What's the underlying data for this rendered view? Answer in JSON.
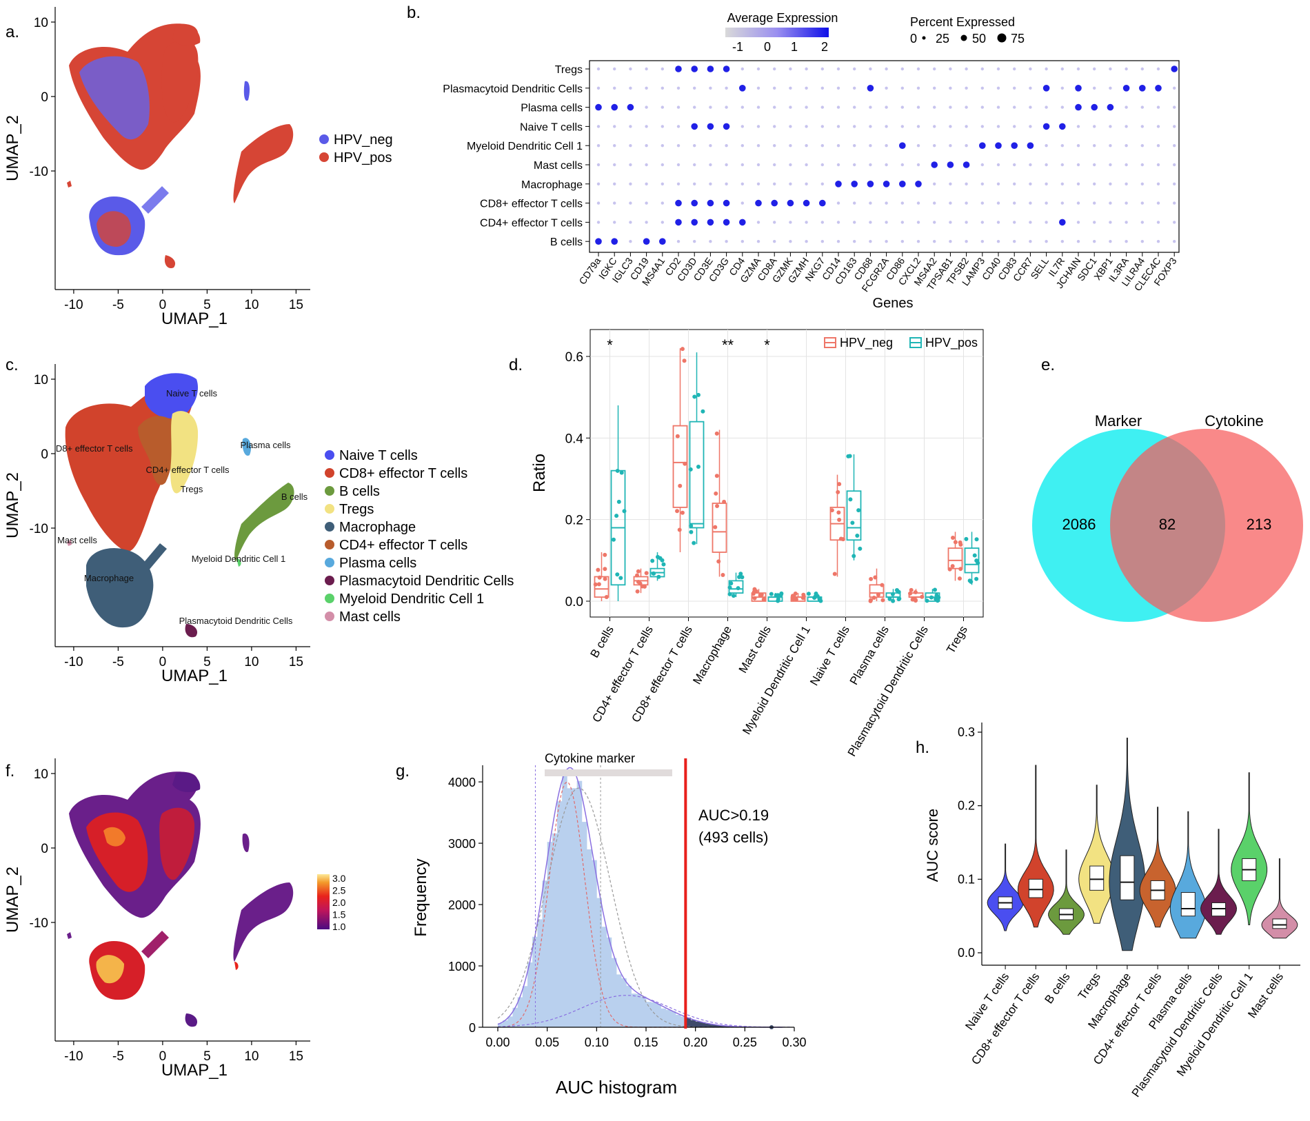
{
  "panel_labels": {
    "a": "a.",
    "b": "b.",
    "c": "c.",
    "d": "d.",
    "e": "e.",
    "f": "f.",
    "g": "g.",
    "h": "h."
  },
  "umap": {
    "xlabel": "UMAP_1",
    "ylabel": "UMAP_2",
    "xticks": [
      -10,
      -5,
      0,
      5,
      10,
      15
    ],
    "yticks": [
      10,
      0,
      -10
    ]
  },
  "panel_a": {
    "legend": [
      {
        "label": "HPV_neg",
        "color": "#5a5ae8"
      },
      {
        "label": "HPV_pos",
        "color": "#d64535"
      }
    ]
  },
  "panel_b": {
    "chart_data": {
      "type": "dot",
      "xlabel": "Genes",
      "genes": [
        "CD79a",
        "IGKC",
        "IGLC3",
        "CD19",
        "MS4A1",
        "CD2",
        "CD3D",
        "CD3E",
        "CD3G",
        "CD4",
        "GZMA",
        "CD8A",
        "GZMK",
        "GZMH",
        "NKG7",
        "CD14",
        "CD163",
        "CD68",
        "FCGR2A",
        "CD86",
        "CXCL2",
        "MS4A2",
        "TPSAB1",
        "TPSB2",
        "LAMP3",
        "CD40",
        "CD83",
        "CCR7",
        "SELL",
        "IL7R",
        "JCHAIN",
        "SDC1",
        "XBP1",
        "IL3RA",
        "LILRA4",
        "CLEC4C",
        "FOXP3"
      ],
      "cell_types": [
        "Tregs",
        "Plasmacytoid Dendritic Cells",
        "Plasma cells",
        "Naive T cells",
        "Myeloid Dendritic Cell 1",
        "Mast cells",
        "Macrophage",
        "CD8+ effector T cells",
        "CD4+ effector T cells",
        "B cells"
      ],
      "color_legend_title": "Average Expression",
      "color_ticks": [
        "-1",
        "0",
        "1",
        "2"
      ],
      "size_legend_title": "Percent Expressed",
      "size_ticks": [
        "0",
        "25",
        "50",
        "75"
      ],
      "highlights": [
        {
          "cell": "Tregs",
          "genes": [
            "CD2",
            "CD3D",
            "CD3E",
            "CD3G",
            "FOXP3"
          ]
        },
        {
          "cell": "Plasmacytoid Dendritic Cells",
          "genes": [
            "CD4",
            "CD68",
            "SELL",
            "JCHAIN",
            "IL3RA",
            "LILRA4",
            "CLEC4C"
          ]
        },
        {
          "cell": "Plasma cells",
          "genes": [
            "CD79a",
            "IGKC",
            "IGLC3",
            "JCHAIN",
            "SDC1",
            "XBP1"
          ]
        },
        {
          "cell": "Naive T cells",
          "genes": [
            "CD3D",
            "CD3E",
            "CD3G",
            "SELL",
            "IL7R"
          ]
        },
        {
          "cell": "Myeloid Dendritic Cell 1",
          "genes": [
            "CD86",
            "LAMP3",
            "CD40",
            "CD83",
            "CCR7"
          ]
        },
        {
          "cell": "Mast cells",
          "genes": [
            "MS4A2",
            "TPSAB1",
            "TPSB2"
          ]
        },
        {
          "cell": "Macrophage",
          "genes": [
            "CD14",
            "CD163",
            "CD68",
            "FCGR2A",
            "CD86",
            "CXCL2"
          ]
        },
        {
          "cell": "CD8+ effector T cells",
          "genes": [
            "CD2",
            "CD3D",
            "CD3E",
            "CD3G",
            "GZMA",
            "CD8A",
            "GZMK",
            "GZMH",
            "NKG7"
          ]
        },
        {
          "cell": "CD4+ effector T cells",
          "genes": [
            "CD2",
            "CD3D",
            "CD3E",
            "CD3G",
            "CD4",
            "IL7R"
          ]
        },
        {
          "cell": "B cells",
          "genes": [
            "CD79a",
            "IGKC",
            "CD19",
            "MS4A1"
          ]
        }
      ]
    }
  },
  "panel_c": {
    "legend": [
      {
        "label": "Naive T cells",
        "color": "#4a4ef0"
      },
      {
        "label": "CD8+ effector T cells",
        "color": "#d1432c"
      },
      {
        "label": "B cells",
        "color": "#6c9a3e"
      },
      {
        "label": "Tregs",
        "color": "#f2e282"
      },
      {
        "label": "Macrophage",
        "color": "#3f5e78"
      },
      {
        "label": "CD4+ effector T cells",
        "color": "#b85c2c"
      },
      {
        "label": "Plasma cells",
        "color": "#58a9dd"
      },
      {
        "label": "Plasmacytoid Dendritic Cells",
        "color": "#6b1d4e"
      },
      {
        "label": "Myeloid Dendritic Cell 1",
        "color": "#5ad16a"
      },
      {
        "label": "Mast cells",
        "color": "#d38ea8"
      }
    ],
    "cluster_labels": [
      "Naive T cells",
      "CD8+ effector T cells",
      "CD4+ effector T cells",
      "Tregs",
      "Plasma cells",
      "B cells",
      "Mast cells",
      "Myeloid Dendritic Cell 1",
      "Macrophage",
      "Plasmacytoid Dendritic Cells"
    ]
  },
  "panel_d": {
    "chart_data": {
      "type": "box",
      "ylabel": "Ratio",
      "ylim": [
        0,
        0.65
      ],
      "yticks": [
        0.0,
        0.2,
        0.4,
        0.6
      ],
      "categories": [
        "B cells",
        "CD4+ effector T cells",
        "CD8+ effector T cells",
        "Macrophage",
        "Mast cells",
        "Myeloid Dendritic Cell 1",
        "Naive T cells",
        "Plasma cells",
        "Plasmacytoid Dendritic Cells",
        "Tregs"
      ],
      "significance": [
        "*",
        "",
        "",
        "**",
        "*",
        "",
        "",
        "",
        "",
        ""
      ],
      "series": [
        {
          "name": "HPV_neg",
          "color": "#ee7668",
          "boxes": [
            [
              0.0,
              0.01,
              0.03,
              0.06,
              0.12
            ],
            [
              0.02,
              0.04,
              0.05,
              0.06,
              0.08
            ],
            [
              0.12,
              0.23,
              0.34,
              0.43,
              0.62
            ],
            [
              0.06,
              0.12,
              0.17,
              0.24,
              0.42
            ],
            [
              0.0,
              0.0,
              0.01,
              0.02,
              0.03
            ],
            [
              0.0,
              0.0,
              0.01,
              0.01,
              0.02
            ],
            [
              0.06,
              0.15,
              0.19,
              0.23,
              0.31
            ],
            [
              0.0,
              0.01,
              0.02,
              0.04,
              0.08
            ],
            [
              0.0,
              0.01,
              0.01,
              0.02,
              0.03
            ],
            [
              0.05,
              0.08,
              0.1,
              0.13,
              0.17
            ]
          ]
        },
        {
          "name": "HPV_pos",
          "color": "#1fb5b5",
          "boxes": [
            [
              0.0,
              0.04,
              0.18,
              0.32,
              0.48
            ],
            [
              0.05,
              0.06,
              0.07,
              0.08,
              0.12
            ],
            [
              0.14,
              0.18,
              0.19,
              0.44,
              0.61
            ],
            [
              0.01,
              0.02,
              0.03,
              0.05,
              0.07
            ],
            [
              0.0,
              0.0,
              0.01,
              0.01,
              0.02
            ],
            [
              0.0,
              0.0,
              0.01,
              0.01,
              0.02
            ],
            [
              0.1,
              0.15,
              0.18,
              0.27,
              0.36
            ],
            [
              0.0,
              0.01,
              0.01,
              0.02,
              0.03
            ],
            [
              0.0,
              0.0,
              0.01,
              0.02,
              0.03
            ],
            [
              0.04,
              0.07,
              0.09,
              0.13,
              0.17
            ]
          ]
        }
      ]
    }
  },
  "panel_e": {
    "sets": [
      {
        "label": "Marker",
        "color": "#3ff0f2"
      },
      {
        "label": "Cytokine",
        "color": "#f65c5c"
      }
    ],
    "counts": {
      "left": "2086",
      "both": "82",
      "right": "213"
    }
  },
  "panel_f": {
    "colorbar_ticks": [
      "3.0",
      "2.5",
      "2.0",
      "1.5",
      "1.0"
    ]
  },
  "panel_g": {
    "chart_data": {
      "type": "histogram",
      "title": "Cytokine marker",
      "xlabel": "AUC histogram",
      "ylabel": "Frequency",
      "xlim": [
        0.0,
        0.3
      ],
      "ylim": [
        0,
        4200
      ],
      "xticks": [
        "0.00",
        "0.05",
        "0.10",
        "0.15",
        "0.20",
        "0.25",
        "0.30"
      ],
      "yticks": [
        0,
        1000,
        2000,
        3000,
        4000
      ],
      "bin_width": 0.005,
      "threshold": 0.19,
      "annotation_line1": "AUC>0.19",
      "annotation_line2": "(493 cells)"
    }
  },
  "panel_h": {
    "chart_data": {
      "type": "violin",
      "ylabel": "AUC score",
      "ylim": [
        0.0,
        0.32
      ],
      "yticks": [
        "0.0",
        "0.1",
        "0.2",
        "0.3"
      ],
      "categories": [
        "Naive T cells",
        "CD8+ effector T cells",
        "B cells",
        "Tregs",
        "Macrophage",
        "CD4+ effector T cells",
        "Plasma cells",
        "Plasmacytoid Dendritic Cells",
        "Myeloid Dendritic Cell 1",
        "Mast cells"
      ],
      "colors": [
        "#4a4ef0",
        "#d1432c",
        "#6c9a3e",
        "#f2e282",
        "#3f5e78",
        "#c8632e",
        "#58a9dd",
        "#6b1d4e",
        "#5ad16a",
        "#d38ea8"
      ],
      "stats": [
        {
          "min": 0.03,
          "q1": 0.06,
          "median": 0.068,
          "q3": 0.076,
          "max": 0.148
        },
        {
          "min": 0.035,
          "q1": 0.075,
          "median": 0.086,
          "q3": 0.1,
          "max": 0.255
        },
        {
          "min": 0.025,
          "q1": 0.045,
          "median": 0.052,
          "q3": 0.06,
          "max": 0.14
        },
        {
          "min": 0.04,
          "q1": 0.085,
          "median": 0.1,
          "q3": 0.118,
          "max": 0.228
        },
        {
          "min": 0.003,
          "q1": 0.072,
          "median": 0.096,
          "q3": 0.132,
          "max": 0.292
        },
        {
          "min": 0.035,
          "q1": 0.072,
          "median": 0.085,
          "q3": 0.098,
          "max": 0.198
        },
        {
          "min": 0.02,
          "q1": 0.05,
          "median": 0.06,
          "q3": 0.082,
          "max": 0.192
        },
        {
          "min": 0.025,
          "q1": 0.05,
          "median": 0.06,
          "q3": 0.068,
          "max": 0.168
        },
        {
          "min": 0.038,
          "q1": 0.098,
          "median": 0.113,
          "q3": 0.128,
          "max": 0.245
        },
        {
          "min": 0.02,
          "q1": 0.033,
          "median": 0.038,
          "q3": 0.046,
          "max": 0.128
        }
      ]
    }
  }
}
